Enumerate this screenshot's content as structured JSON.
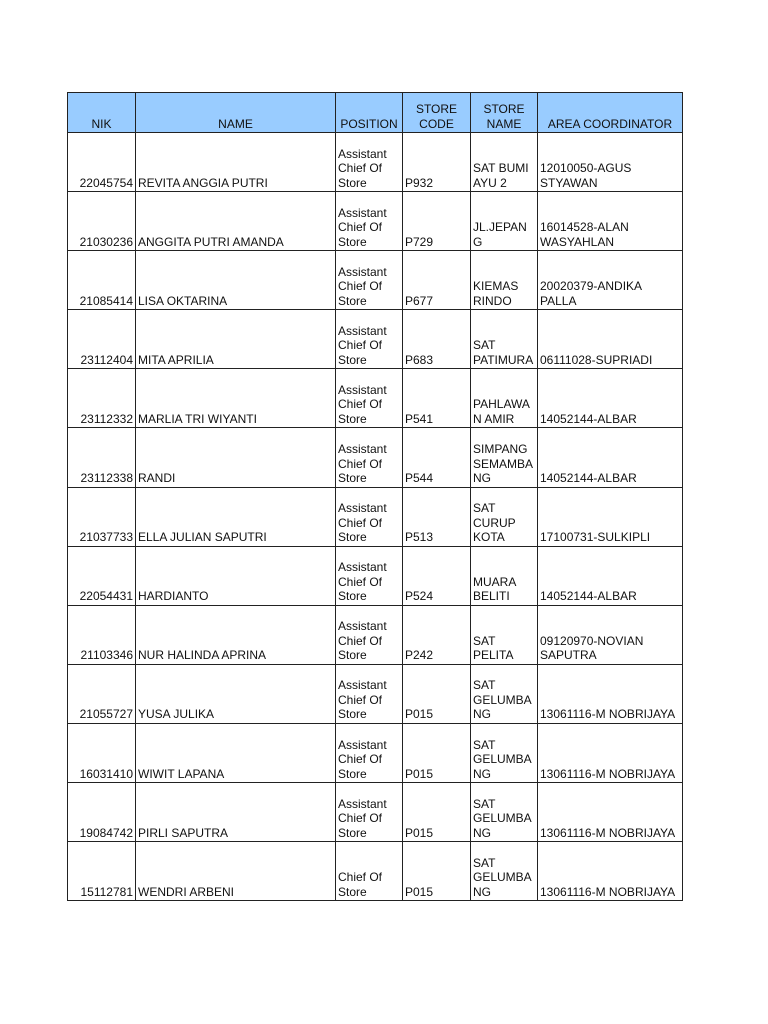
{
  "headers": [
    "NIK",
    "NAME",
    "POSITION",
    "STORE CODE",
    "STORE NAME",
    "AREA COORDINATOR"
  ],
  "header_color": "#99ccff",
  "rows": [
    [
      "22045754",
      "REVITA ANGGIA PUTRI",
      "Assistant Chief Of Store",
      "P932",
      "SAT BUMI AYU 2",
      "12010050-AGUS STYAWAN"
    ],
    [
      "21030236",
      "ANGGITA PUTRI AMANDA",
      "Assistant Chief Of Store",
      "P729",
      "JL.JEPANG",
      "16014528-ALAN WASYAHLAN"
    ],
    [
      "21085414",
      "LISA OKTARINA",
      "Assistant Chief Of Store",
      "P677",
      "KIEMAS RINDO",
      "20020379-ANDIKA PALLA"
    ],
    [
      "23112404",
      "MITA APRILIA",
      "Assistant Chief Of Store",
      "P683",
      "SAT PATIMURA",
      "06111028-SUPRIADI"
    ],
    [
      "23112332",
      "MARLIA TRI WIYANTI",
      "Assistant Chief Of Store",
      "P541",
      "PAHLAWAN AMIR",
      "14052144-ALBAR"
    ],
    [
      "23112338",
      "RANDI",
      "Assistant Chief Of Store",
      "P544",
      "SIMPANG SEMAMBANG",
      "14052144-ALBAR"
    ],
    [
      "21037733",
      "ELLA JULIAN SAPUTRI",
      "Assistant Chief Of Store",
      "P513",
      "SAT CURUP KOTA",
      "17100731-SULKIPLI"
    ],
    [
      "22054431",
      "HARDIANTO",
      "Assistant Chief Of Store",
      "P524",
      "MUARA BELITI",
      "14052144-ALBAR"
    ],
    [
      "21103346",
      "NUR HALINDA APRINA",
      "Assistant Chief Of Store",
      "P242",
      "SAT PELITA",
      "09120970-NOVIAN SAPUTRA"
    ],
    [
      "21055727",
      "YUSA JULIKA",
      "Assistant Chief Of Store",
      "P015",
      "SAT GELUMBANG",
      "13061116-M NOBRIJAYA"
    ],
    [
      "16031410",
      "WIWIT LAPANA",
      "Assistant Chief Of Store",
      "P015",
      "SAT GELUMBANG",
      "13061116-M NOBRIJAYA"
    ],
    [
      "19084742",
      "PIRLI SAPUTRA",
      "Assistant Chief Of Store",
      "P015",
      "SAT GELUMBANG",
      "13061116-M NOBRIJAYA"
    ],
    [
      "15112781",
      "WENDRI ARBENI",
      "Chief Of Store",
      "P015",
      "SAT GELUMBANG",
      "13061116-M NOBRIJAYA"
    ]
  ]
}
